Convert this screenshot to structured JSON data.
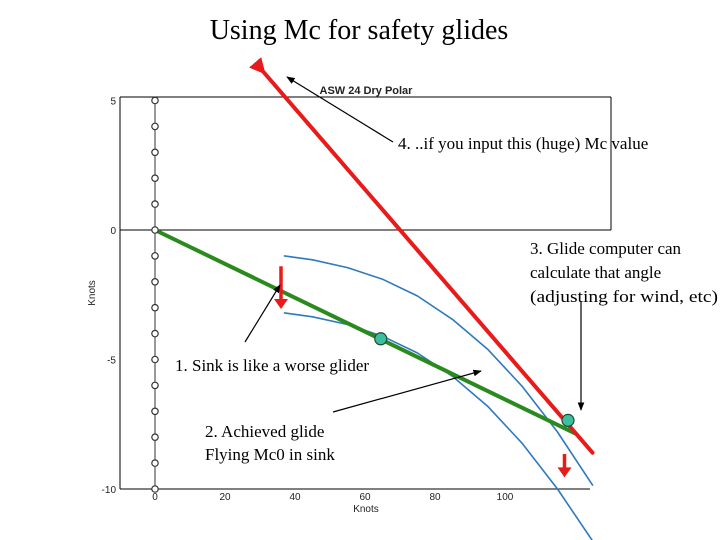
{
  "slide": {
    "title": "Using Mc for safety glides",
    "annotations": {
      "a1": "1. Sink is like a worse glider",
      "a2_line1": "2. Achieved glide",
      "a2_line2": "Flying Mc0 in sink",
      "a3_line1": "3. Glide computer can",
      "a3_line2": "calculate that angle",
      "a3_line3": "(adjusting for wind, etc)",
      "a4": "4. ..if you input this (huge) Mc value"
    }
  },
  "chart_data": {
    "type": "line",
    "title": "ASW 24 Dry Polar",
    "xlabel": "Knots",
    "ylabel": "Knots",
    "xlim": [
      0,
      117
    ],
    "ylim": [
      -10,
      5
    ],
    "xticks": [
      0,
      20,
      40,
      60,
      80,
      100
    ],
    "yticks": [
      5,
      0,
      -5,
      -10
    ],
    "grid": false,
    "series": [
      {
        "x": [
          37,
          45,
          55,
          65,
          75,
          85,
          95,
          105,
          115,
          125
        ],
        "y": [
          -1.0,
          -1.15,
          -1.45,
          -1.9,
          -2.55,
          -3.45,
          -4.6,
          -6.05,
          -7.8,
          -9.85
        ]
      },
      {
        "x": [
          37,
          45,
          55,
          65,
          75,
          85,
          95,
          105,
          115,
          125
        ],
        "y": [
          -3.2,
          -3.35,
          -3.65,
          -4.1,
          -4.75,
          -5.65,
          -6.8,
          -8.25,
          -10.0,
          -12.0
        ]
      },
      {
        "x": [
          0,
          120
        ],
        "y": [
          0,
          -7.85
        ]
      },
      {
        "x": [
          31,
          125
        ],
        "y": [
          6.1,
          -8.6
        ]
      }
    ],
    "markers": {
      "stack_dots": {
        "x": 0,
        "y": [
          5,
          4,
          3,
          2,
          1,
          0,
          -1,
          -2,
          -3,
          -4,
          -5,
          -6,
          -7,
          -8,
          -9,
          -10
        ]
      },
      "tangent_points": [
        {
          "x": 64.5,
          "y": -4.2
        },
        {
          "x": 118,
          "y": -7.35
        }
      ]
    },
    "sink_arrows": [
      {
        "x": 36,
        "y_from": -1.4,
        "y_to": -3.05
      },
      {
        "x": 117,
        "y_from": -8.65,
        "y_to": -9.55
      }
    ]
  }
}
